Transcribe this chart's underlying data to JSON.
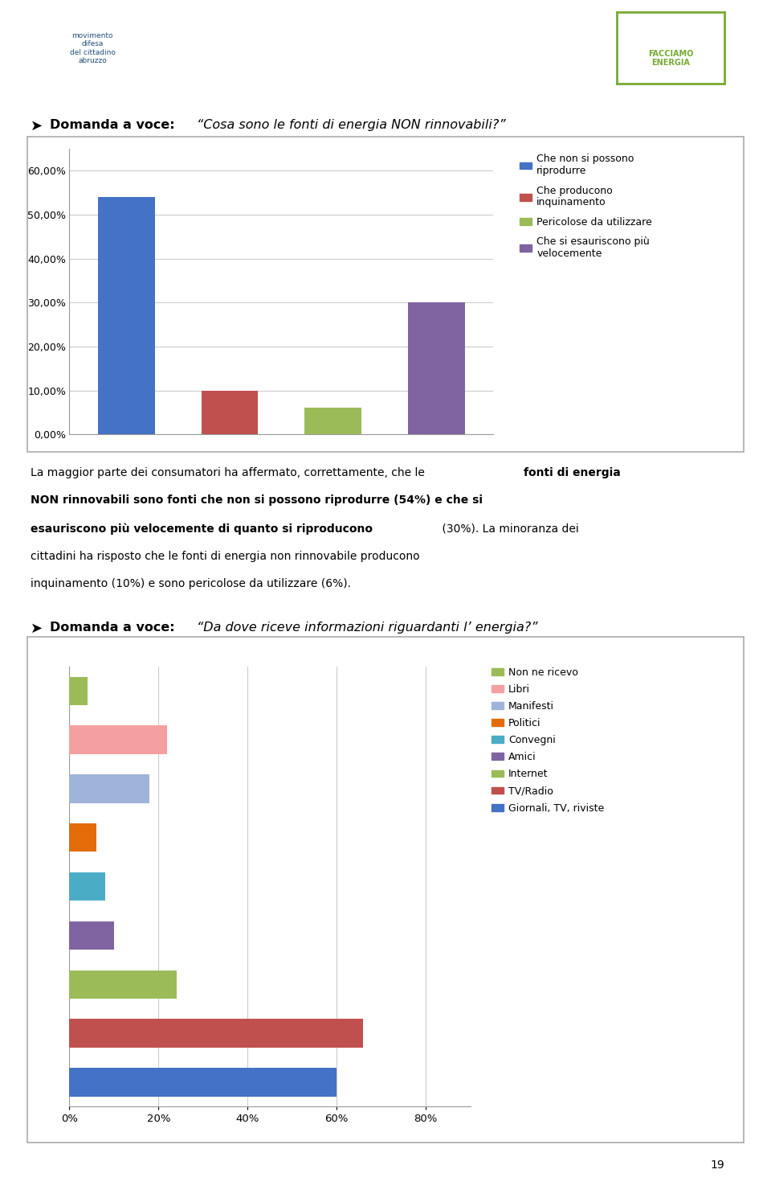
{
  "chart1_values": [
    0.54,
    0.1,
    0.06,
    0.3
  ],
  "chart1_colors": [
    "#4472C4",
    "#C0504D",
    "#9BBB59",
    "#8064A2"
  ],
  "chart1_legend": [
    "Che non si possono\nriprodurre",
    "Che producono\ninquinamento",
    "Pericolose da utilizzare",
    "Che si esauriscono più\nvelocemente"
  ],
  "chart1_yticks": [
    0.0,
    0.1,
    0.2,
    0.3,
    0.4,
    0.5,
    0.6
  ],
  "chart1_ytick_labels": [
    "0,00%",
    "10,00%",
    "20,00%",
    "30,00%",
    "40,00%",
    "50,00%",
    "60,00%"
  ],
  "chart1_ylim": [
    0,
    0.65
  ],
  "chart1_title_bold": "Domanda a voce: ",
  "chart1_title_italic": "“Cosa sono le fonti di energia NON rinnovabili?”",
  "chart2_values": [
    0.04,
    0.22,
    0.18,
    0.06,
    0.08,
    0.1,
    0.24,
    0.66,
    0.6
  ],
  "chart2_colors": [
    "#9BBB59",
    "#F4A0A0",
    "#9FB4D8",
    "#E36C09",
    "#4BACC6",
    "#8064A2",
    "#9BBB59",
    "#C0504D",
    "#4472C4"
  ],
  "chart2_legend": [
    "Non ne ricevo",
    "Libri",
    "Manifesti",
    "Politici",
    "Convegni",
    "Amici",
    "Internet",
    "TV/Radio",
    "Giornali, TV, riviste"
  ],
  "chart2_xlim": [
    0,
    0.9
  ],
  "chart2_xticks": [
    0.0,
    0.2,
    0.4,
    0.6,
    0.8
  ],
  "chart2_xtick_labels": [
    "0%",
    "20%",
    "40%",
    "60%",
    "80%"
  ],
  "chart2_title_bold": "Domanda a voce: ",
  "chart2_title_italic": "“Da dove riceve informazioni riguardanti l’ energia?”",
  "page_number": "19",
  "bg": "#FFFFFF",
  "border_color": "#AAAAAA",
  "grid_color": "#CCCCCC",
  "text_intro": "La maggior parte dei consumatori ha affermato, correttamente, che le ",
  "text_bold1": "fonti di energia\nNON rinnovabili sono fonti che non si possono riprodurre (54%) e che si\nesauriscono più velocemente di quanto si riproducono",
  "text_mid": " (30%). La minoranza dei\ncittadini ha risposto che le fonti di energia non rinnovabile producono\ninquinamento (10%) e sono pericolose da utilizzare (6%)."
}
